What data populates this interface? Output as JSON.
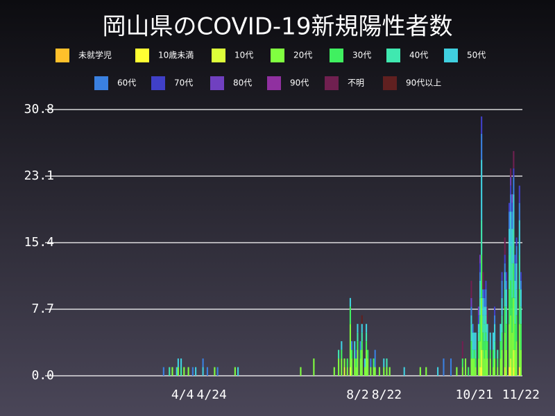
{
  "chart_data": {
    "type": "stacked_bar",
    "title": "岡山県のCOVID-19新規陽性者数",
    "x": [
      "3/22",
      "3/26",
      "3/28",
      "3/31",
      "4/1",
      "4/3",
      "4/5",
      "4/8",
      "4/11",
      "4/13",
      "4/18",
      "4/21",
      "4/26",
      "4/28",
      "5/10",
      "5/12",
      "6/24",
      "7/3",
      "7/17",
      "7/20",
      "7/22",
      "7/24",
      "7/26",
      "7/28",
      "7/29",
      "7/31",
      "8/1",
      "8/2",
      "8/4",
      "8/5",
      "8/7",
      "8/8",
      "8/9",
      "8/11",
      "8/13",
      "8/14",
      "8/17",
      "8/20",
      "8/22",
      "8/24",
      "9/3",
      "9/14",
      "9/18",
      "9/26",
      "9/30",
      "10/5",
      "10/9",
      "10/13",
      "10/15",
      "10/17",
      "10/19",
      "10/20",
      "10/21",
      "10/22",
      "10/24",
      "10/25",
      "10/26",
      "10/27",
      "10/28",
      "10/29",
      "10/30",
      "11/1",
      "11/3",
      "11/4",
      "11/6",
      "11/8",
      "11/9",
      "11/11",
      "11/12",
      "11/14",
      "11/15",
      "11/16",
      "11/17",
      "11/18",
      "11/19",
      "11/21",
      "11/22"
    ],
    "xlim": [
      "1/15",
      "11/23"
    ],
    "xticks": [
      "4/4",
      "4/24",
      "8/2",
      "8/22",
      "10/21",
      "11/22"
    ],
    "ylim": [
      0,
      30.8
    ],
    "yticks": [
      {
        "value": 0,
        "label": "0.0"
      },
      7.7,
      15.4,
      23.1,
      30.8
    ],
    "grid": true,
    "series": [
      {
        "name": "未就学児",
        "color": "#ffc02b",
        "values": [
          0,
          0,
          0,
          0,
          0,
          0,
          0,
          0,
          0,
          0,
          0,
          0,
          0,
          0,
          0,
          0,
          0,
          0,
          0,
          0,
          0,
          0,
          0,
          0,
          0,
          0,
          0,
          0,
          0,
          0,
          0,
          0,
          0,
          0,
          0,
          0,
          0,
          0,
          0,
          0,
          0,
          0,
          0,
          0,
          0,
          0,
          0,
          0,
          0,
          0,
          0,
          0,
          0,
          0,
          0,
          0,
          0,
          0,
          0,
          0,
          0,
          0,
          0,
          0,
          0,
          0,
          0,
          0,
          0,
          0,
          0,
          0,
          0,
          0,
          0,
          0,
          0
        ]
      },
      {
        "name": "10歳未満",
        "color": "#ffff33",
        "values": [
          0,
          0,
          0,
          0,
          0,
          0,
          0,
          0,
          0,
          0,
          0,
          0,
          0,
          0,
          0,
          0,
          0,
          0,
          0,
          0,
          0,
          0,
          0,
          0,
          0,
          0,
          0,
          0,
          0,
          0,
          0,
          0,
          0,
          0,
          0,
          0,
          0,
          0,
          0,
          0,
          0,
          0,
          0,
          0,
          0,
          0,
          0,
          0,
          0,
          0,
          0,
          0,
          0,
          0,
          0,
          0,
          1,
          0,
          0,
          0,
          0,
          0,
          0,
          0,
          0,
          0,
          0,
          0,
          0,
          1,
          1,
          0,
          1,
          0,
          0,
          1,
          0
        ]
      },
      {
        "name": "10代",
        "color": "#ddff3a",
        "values": [
          0,
          0,
          0,
          0,
          0,
          0,
          0,
          0,
          0,
          0,
          0,
          0,
          0,
          0,
          0,
          0,
          0,
          0,
          0,
          0,
          0,
          1,
          0,
          1,
          0,
          0,
          0,
          0,
          0,
          0,
          0,
          0,
          0,
          0,
          0,
          0,
          0,
          0,
          0,
          0,
          0,
          0,
          0,
          0,
          0,
          0,
          0,
          0,
          0,
          0,
          0,
          0,
          0,
          0,
          0,
          1,
          2,
          0,
          0,
          0,
          0,
          0,
          0,
          0,
          0,
          0,
          0,
          1,
          0,
          0,
          1,
          0,
          2,
          0,
          0,
          0,
          0
        ]
      },
      {
        "name": "20代",
        "color": "#80ff40",
        "values": [
          0,
          0,
          1,
          0,
          1,
          0,
          1,
          1,
          0,
          0,
          0,
          0,
          1,
          0,
          1,
          0,
          1,
          2,
          1,
          2,
          2,
          1,
          1,
          5,
          2,
          2,
          1,
          3,
          2,
          3,
          1,
          3,
          2,
          1,
          1,
          1,
          1,
          1,
          1,
          1,
          0,
          1,
          1,
          0,
          0,
          0,
          1,
          1,
          2,
          0,
          2,
          2,
          2,
          1,
          2,
          3,
          6,
          3,
          2,
          3,
          2,
          2,
          1,
          2,
          1,
          2,
          3,
          4,
          3,
          5,
          5,
          5,
          6,
          3,
          4,
          5,
          3
        ]
      },
      {
        "name": "30代",
        "color": "#40f060",
        "values": [
          0,
          0,
          0,
          0,
          0,
          0,
          0,
          0,
          0,
          0,
          0,
          0,
          0,
          0,
          0,
          0,
          0,
          0,
          0,
          0,
          1,
          0,
          1,
          2,
          1,
          0,
          1,
          1,
          1,
          1,
          0,
          1,
          1,
          0,
          1,
          0,
          0,
          0,
          0,
          0,
          0,
          0,
          0,
          0,
          0,
          0,
          0,
          1,
          0,
          1,
          2,
          0,
          1,
          1,
          2,
          3,
          5,
          2,
          2,
          2,
          2,
          1,
          2,
          0,
          1,
          2,
          2,
          3,
          3,
          4,
          4,
          4,
          4,
          3,
          3,
          4,
          3
        ]
      },
      {
        "name": "40代",
        "color": "#40e8b0",
        "values": [
          0,
          1,
          0,
          0,
          0,
          1,
          0,
          0,
          0,
          0,
          0,
          0,
          0,
          0,
          0,
          0,
          0,
          0,
          0,
          1,
          0,
          0,
          0,
          0,
          0,
          1,
          0,
          1,
          0,
          1,
          0,
          1,
          0,
          0,
          0,
          0,
          0,
          0,
          1,
          0,
          0,
          0,
          0,
          0,
          0,
          0,
          0,
          0,
          0,
          0,
          2,
          1,
          0,
          1,
          1,
          2,
          4,
          2,
          2,
          2,
          0,
          0,
          0,
          2,
          1,
          0,
          2,
          2,
          2,
          4,
          4,
          4,
          4,
          3,
          3,
          4,
          2
        ]
      },
      {
        "name": "50代",
        "color": "#40d0e0",
        "values": [
          0,
          0,
          0,
          1,
          1,
          1,
          0,
          0,
          0,
          1,
          1,
          0,
          0,
          0,
          0,
          1,
          0,
          0,
          0,
          0,
          1,
          0,
          0,
          1,
          0,
          1,
          0,
          1,
          0,
          1,
          1,
          1,
          0,
          0,
          0,
          0,
          0,
          1,
          0,
          0,
          1,
          0,
          0,
          1,
          0,
          0,
          0,
          0,
          0,
          0,
          1,
          2,
          2,
          2,
          1,
          2,
          7,
          2,
          2,
          1,
          2,
          2,
          2,
          2,
          0,
          2,
          2,
          2,
          2,
          3,
          4,
          4,
          4,
          2,
          3,
          4,
          2
        ]
      },
      {
        "name": "60代",
        "color": "#3a80e0",
        "values": [
          1,
          0,
          0,
          0,
          0,
          0,
          0,
          0,
          1,
          0,
          1,
          1,
          0,
          1,
          0,
          0,
          0,
          0,
          0,
          0,
          0,
          0,
          0,
          0,
          1,
          0,
          0,
          0,
          1,
          0,
          0,
          0,
          0,
          1,
          0,
          2,
          0,
          0,
          0,
          0,
          0,
          0,
          0,
          0,
          2,
          2,
          0,
          0,
          0,
          0,
          1,
          1,
          0,
          0,
          0,
          1,
          3,
          1,
          1,
          2,
          0,
          0,
          0,
          1,
          0,
          0,
          2,
          1,
          1,
          2,
          2,
          2,
          2,
          2,
          2,
          2,
          1
        ]
      },
      {
        "name": "70代",
        "color": "#4040c8",
        "values": [
          0,
          0,
          0,
          0,
          0,
          0,
          0,
          0,
          0,
          0,
          0,
          0,
          0,
          0,
          0,
          0,
          0,
          0,
          0,
          0,
          0,
          0,
          0,
          0,
          0,
          0,
          1,
          0,
          0,
          0,
          0,
          0,
          0,
          0,
          0,
          0,
          0,
          0,
          0,
          0,
          0,
          0,
          0,
          0,
          0,
          0,
          0,
          0,
          0,
          0,
          0,
          0,
          0,
          0,
          1,
          1,
          2,
          0,
          1,
          1,
          0,
          0,
          0,
          1,
          0,
          0,
          1,
          1,
          1,
          1,
          1,
          1,
          1,
          1,
          1,
          2,
          1
        ]
      },
      {
        "name": "80代",
        "color": "#7040c0",
        "values": [
          0,
          0,
          0,
          0,
          0,
          0,
          0,
          0,
          0,
          0,
          0,
          0,
          0,
          0,
          0,
          0,
          0,
          0,
          0,
          0,
          0,
          0,
          0,
          0,
          0,
          0,
          0,
          0,
          0,
          0,
          0,
          0,
          0,
          0,
          0,
          0,
          0,
          0,
          0,
          0,
          0,
          0,
          0,
          0,
          0,
          0,
          0,
          0,
          0,
          0,
          1,
          0,
          0,
          0,
          1,
          1,
          0,
          0,
          0,
          0,
          0,
          0,
          0,
          0,
          0,
          0,
          0,
          0,
          0,
          0,
          1,
          1,
          0,
          0,
          0,
          0,
          0
        ]
      },
      {
        "name": "90代",
        "color": "#9030a0",
        "values": [
          0,
          0,
          0,
          0,
          0,
          0,
          0,
          0,
          0,
          0,
          0,
          0,
          0,
          0,
          0,
          0,
          0,
          0,
          0,
          0,
          0,
          0,
          0,
          0,
          0,
          0,
          0,
          0,
          0,
          0,
          0,
          0,
          0,
          0,
          0,
          0,
          0,
          0,
          0,
          0,
          0,
          0,
          0,
          0,
          0,
          0,
          0,
          0,
          0,
          0,
          0,
          0,
          0,
          0,
          0,
          0,
          0,
          0,
          0,
          0,
          0,
          0,
          0,
          0,
          0,
          0,
          0,
          0,
          0,
          0,
          0,
          0,
          0,
          0,
          0,
          0,
          0
        ]
      },
      {
        "name": "不明",
        "color": "#702050",
        "values": [
          0,
          0,
          0,
          0,
          0,
          0,
          0,
          0,
          0,
          0,
          0,
          0,
          0,
          0,
          0,
          0,
          0,
          0,
          0,
          0,
          0,
          0,
          0,
          0,
          0,
          0,
          0,
          0,
          0,
          0,
          0,
          0,
          0,
          0,
          0,
          0,
          0,
          0,
          0,
          0,
          0,
          0,
          0,
          0,
          0,
          0,
          0,
          2,
          0,
          0,
          2,
          0,
          0,
          0,
          0,
          0,
          0,
          2,
          0,
          0,
          2,
          0,
          0,
          0,
          0,
          0,
          0,
          2,
          0,
          0,
          1,
          0,
          2,
          0,
          0,
          0,
          0
        ]
      },
      {
        "name": "90代以上",
        "color": "#602020",
        "values": [
          0,
          0,
          0,
          0,
          0,
          0,
          0,
          0,
          0,
          0,
          0,
          0,
          0,
          0,
          0,
          0,
          0,
          0,
          0,
          0,
          0,
          0,
          0,
          0,
          0,
          0,
          0,
          0,
          0,
          1,
          0,
          0,
          0,
          0,
          0,
          0,
          0,
          0,
          0,
          0,
          0,
          0,
          0,
          0,
          0,
          0,
          0,
          0,
          0,
          0,
          0,
          0,
          0,
          0,
          0,
          0,
          0,
          0,
          0,
          0,
          0,
          0,
          0,
          0,
          0,
          0,
          0,
          0,
          0,
          0,
          0,
          0,
          0,
          0,
          0,
          0,
          0
        ]
      }
    ]
  }
}
